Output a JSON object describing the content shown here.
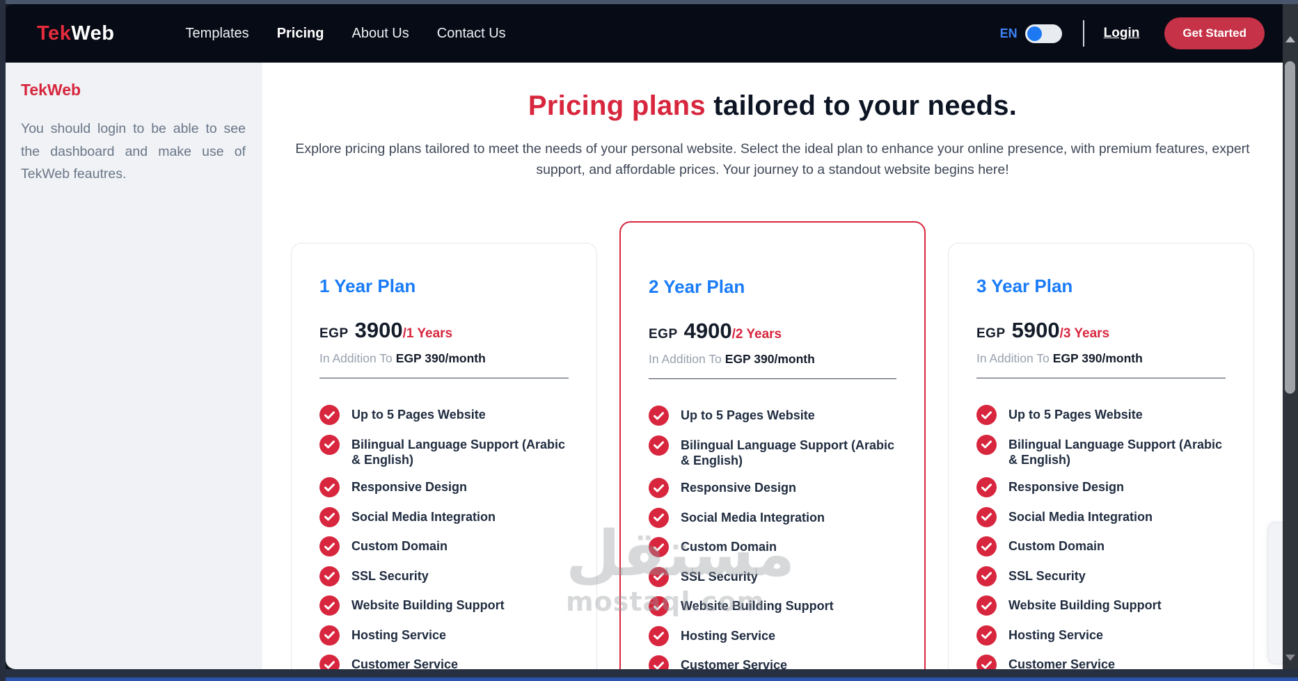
{
  "navbar": {
    "logo": {
      "part1": "Tek",
      "part2": "Web"
    },
    "links": [
      {
        "label": "Templates",
        "active": false
      },
      {
        "label": "Pricing",
        "active": true
      },
      {
        "label": "About Us",
        "active": false
      },
      {
        "label": "Contact Us",
        "active": false
      }
    ],
    "lang_label": "EN",
    "login_label": "Login",
    "get_started_label": "Get Started"
  },
  "sidebar": {
    "title": "TekWeb",
    "message": "You should login to be able to see the dashboard and make use of TekWeb feautres."
  },
  "hero": {
    "title_highlight": "Pricing plans",
    "title_rest": " tailored to your needs.",
    "subtitle": "Explore pricing plans tailored to meet the needs of your personal website. Select the ideal plan to enhance your online presence, with premium features, expert support, and affordable prices. Your journey to a standout website begins here!"
  },
  "plans": [
    {
      "name": "1 Year Plan",
      "currency": "EGP",
      "price": "3900",
      "per": "/1 Years",
      "addition_prefix": "In Addition To",
      "addition_value": "EGP 390/month",
      "featured": false,
      "features": [
        "Up to 5 Pages Website",
        "Bilingual Language Support (Arabic & English)",
        "Responsive Design",
        "Social Media Integration",
        "Custom Domain",
        "SSL Security",
        "Website Building Support",
        "Hosting Service",
        "Customer Service"
      ]
    },
    {
      "name": "2 Year Plan",
      "currency": "EGP",
      "price": "4900",
      "per": "/2 Years",
      "addition_prefix": "In Addition To",
      "addition_value": "EGP 390/month",
      "featured": true,
      "features": [
        "Up to 5 Pages Website",
        "Bilingual Language Support (Arabic & English)",
        "Responsive Design",
        "Social Media Integration",
        "Custom Domain",
        "SSL Security",
        "Website Building Support",
        "Hosting Service",
        "Customer Service"
      ]
    },
    {
      "name": "3 Year Plan",
      "currency": "EGP",
      "price": "5900",
      "per": "/3 Years",
      "addition_prefix": "In Addition To",
      "addition_value": "EGP 390/month",
      "featured": false,
      "features": [
        "Up to 5 Pages Website",
        "Bilingual Language Support (Arabic & English)",
        "Responsive Design",
        "Social Media Integration",
        "Custom Domain",
        "SSL Security",
        "Website Building Support",
        "Hosting Service",
        "Customer Service"
      ]
    }
  ],
  "watermark": {
    "arabic": "مستقل",
    "latin": "mostaql.com"
  },
  "colors": {
    "accent_red": "#d7263d",
    "plan_title_blue": "#1a7cf8",
    "navbar_bg": "#070b15",
    "button_red": "#c63247",
    "lang_blue": "#3b82f6",
    "sidebar_bg": "#f0f2f5"
  }
}
